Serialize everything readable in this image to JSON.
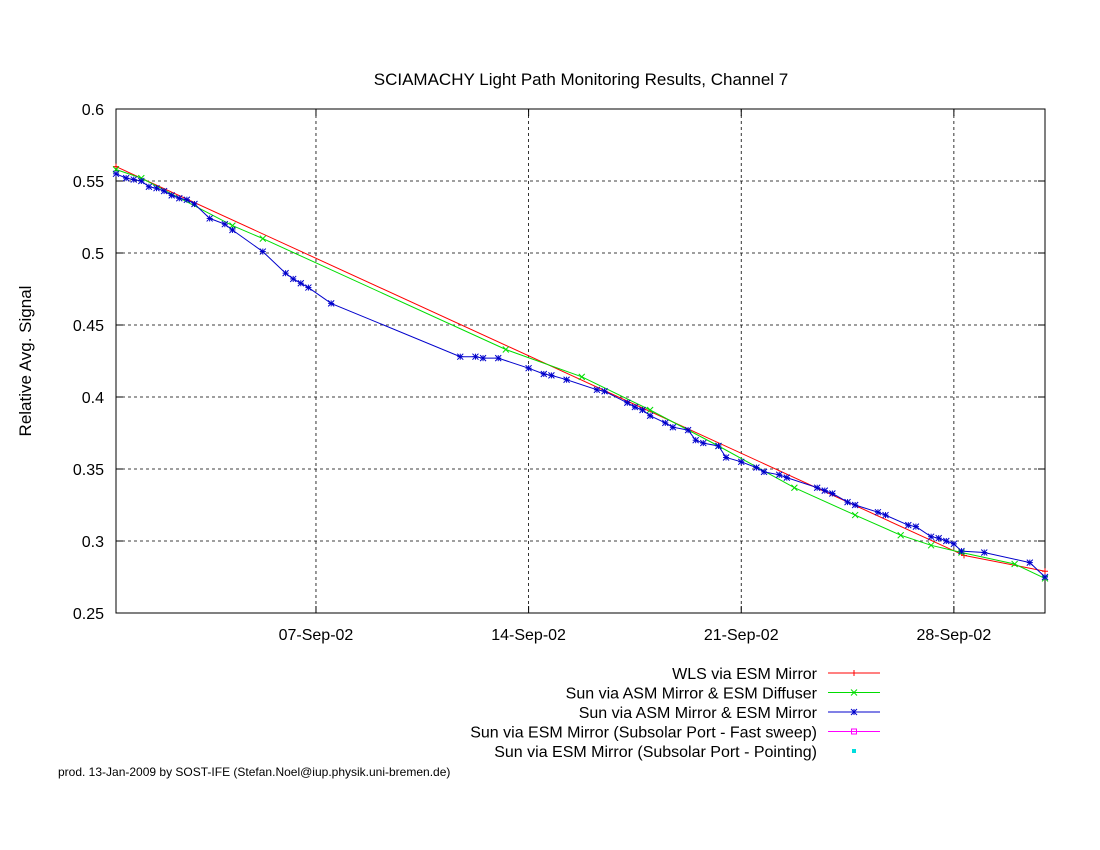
{
  "chart_data": {
    "type": "line",
    "title": "SCIAMACHY Light Path Monitoring Results, Channel 7",
    "xlabel": "",
    "ylabel": "Relative Avg. Signal",
    "x_type": "date",
    "xlim": [
      "2002-08-31T10:00",
      "2002-10-01T00:00"
    ],
    "ylim": [
      0.25,
      0.6
    ],
    "x_ticks": [
      {
        "date": "2002-09-07",
        "label": "07-Sep-02"
      },
      {
        "date": "2002-09-14",
        "label": "14-Sep-02"
      },
      {
        "date": "2002-09-21",
        "label": "21-Sep-02"
      },
      {
        "date": "2002-09-28",
        "label": "28-Sep-02"
      }
    ],
    "y_ticks": [
      0.25,
      0.3,
      0.35,
      0.4,
      0.45,
      0.5,
      0.55,
      0.6
    ],
    "y_tick_labels": [
      "0.25",
      "0.3",
      "0.35",
      "0.4",
      "0.45",
      "0.5",
      "0.55",
      "0.6"
    ],
    "grid": true,
    "legend_position": "bottom-right",
    "series": [
      {
        "name": "WLS via ESM Mirror",
        "color": "#ff0000",
        "marker": "plus",
        "x": [
          "2002-08-31T10:00",
          "2002-09-28T08:00",
          "2002-10-01T00:00"
        ],
        "y": [
          0.56,
          0.29,
          0.279
        ]
      },
      {
        "name": "Sun via ASM Mirror & ESM Diffuser",
        "color": "#00dd00",
        "marker": "cross",
        "x": [
          "2002-08-31T10:00",
          "2002-09-01T06:00",
          "2002-09-04T06:00",
          "2002-09-05T06:00",
          "2002-09-13T06:00",
          "2002-09-15T18:00",
          "2002-09-18T00:00",
          "2002-09-20T06:00",
          "2002-09-22T18:00",
          "2002-09-24T18:00",
          "2002-09-26T06:00",
          "2002-09-27T06:00",
          "2002-09-28T06:00",
          "2002-09-30T00:00",
          "2002-10-01T00:00"
        ],
        "y": [
          0.558,
          0.552,
          0.519,
          0.51,
          0.433,
          0.414,
          0.391,
          0.366,
          0.337,
          0.318,
          0.304,
          0.297,
          0.292,
          0.284,
          0.274
        ]
      },
      {
        "name": "Sun via ASM Mirror & ESM Mirror",
        "color": "#0000cc",
        "marker": "star",
        "x": [
          "2002-08-31T10:00",
          "2002-08-31T18:00",
          "2002-09-01T00:00",
          "2002-09-01T06:00",
          "2002-09-01T12:00",
          "2002-09-01T18:00",
          "2002-09-02T00:00",
          "2002-09-02T06:00",
          "2002-09-02T12:00",
          "2002-09-02T18:00",
          "2002-09-03T00:00",
          "2002-09-03T12:00",
          "2002-09-04T00:00",
          "2002-09-04T06:00",
          "2002-09-05T06:00",
          "2002-09-06T00:00",
          "2002-09-06T06:00",
          "2002-09-06T12:00",
          "2002-09-06T18:00",
          "2002-09-07T12:00",
          "2002-09-11T18:00",
          "2002-09-12T06:00",
          "2002-09-12T12:00",
          "2002-09-13T00:00",
          "2002-09-14T00:00",
          "2002-09-14T12:00",
          "2002-09-14T18:00",
          "2002-09-15T06:00",
          "2002-09-16T06:00",
          "2002-09-16T12:00",
          "2002-09-17T06:00",
          "2002-09-17T12:00",
          "2002-09-17T18:00",
          "2002-09-18T00:00",
          "2002-09-18T12:00",
          "2002-09-18T18:00",
          "2002-09-19T06:00",
          "2002-09-19T12:00",
          "2002-09-19T18:00",
          "2002-09-20T06:00",
          "2002-09-20T12:00",
          "2002-09-21T00:00",
          "2002-09-21T12:00",
          "2002-09-21T18:00",
          "2002-09-22T06:00",
          "2002-09-22T12:00",
          "2002-09-23T12:00",
          "2002-09-23T18:00",
          "2002-09-24T00:00",
          "2002-09-24T12:00",
          "2002-09-24T18:00",
          "2002-09-25T12:00",
          "2002-09-25T18:00",
          "2002-09-26T12:00",
          "2002-09-26T18:00",
          "2002-09-27T06:00",
          "2002-09-27T12:00",
          "2002-09-27T18:00",
          "2002-09-28T00:00",
          "2002-09-28T06:00",
          "2002-09-29T00:00",
          "2002-09-30T12:00",
          "2002-10-01T00:00"
        ],
        "y": [
          0.555,
          0.552,
          0.551,
          0.55,
          0.546,
          0.545,
          0.543,
          0.54,
          0.538,
          0.537,
          0.534,
          0.524,
          0.52,
          0.516,
          0.501,
          0.486,
          0.482,
          0.479,
          0.476,
          0.465,
          0.428,
          0.428,
          0.427,
          0.427,
          0.42,
          0.416,
          0.415,
          0.412,
          0.405,
          0.404,
          0.396,
          0.393,
          0.391,
          0.387,
          0.382,
          0.379,
          0.377,
          0.37,
          0.368,
          0.366,
          0.358,
          0.355,
          0.351,
          0.348,
          0.346,
          0.344,
          0.337,
          0.335,
          0.333,
          0.327,
          0.325,
          0.32,
          0.318,
          0.311,
          0.31,
          0.303,
          0.302,
          0.3,
          0.298,
          0.293,
          0.292,
          0.285,
          0.275
        ]
      },
      {
        "name": "Sun via ESM Mirror (Subsolar Port - Fast sweep)",
        "color": "#ff00ff",
        "marker": "square",
        "x": [],
        "y": []
      },
      {
        "name": "Sun via ESM Mirror (Subsolar Port - Pointing)",
        "color": "#00dddd",
        "marker": "dot",
        "x": [],
        "y": []
      }
    ],
    "footer": "prod. 13-Jan-2009 by SOST-IFE (Stefan.Noel@iup.physik.uni-bremen.de)"
  }
}
